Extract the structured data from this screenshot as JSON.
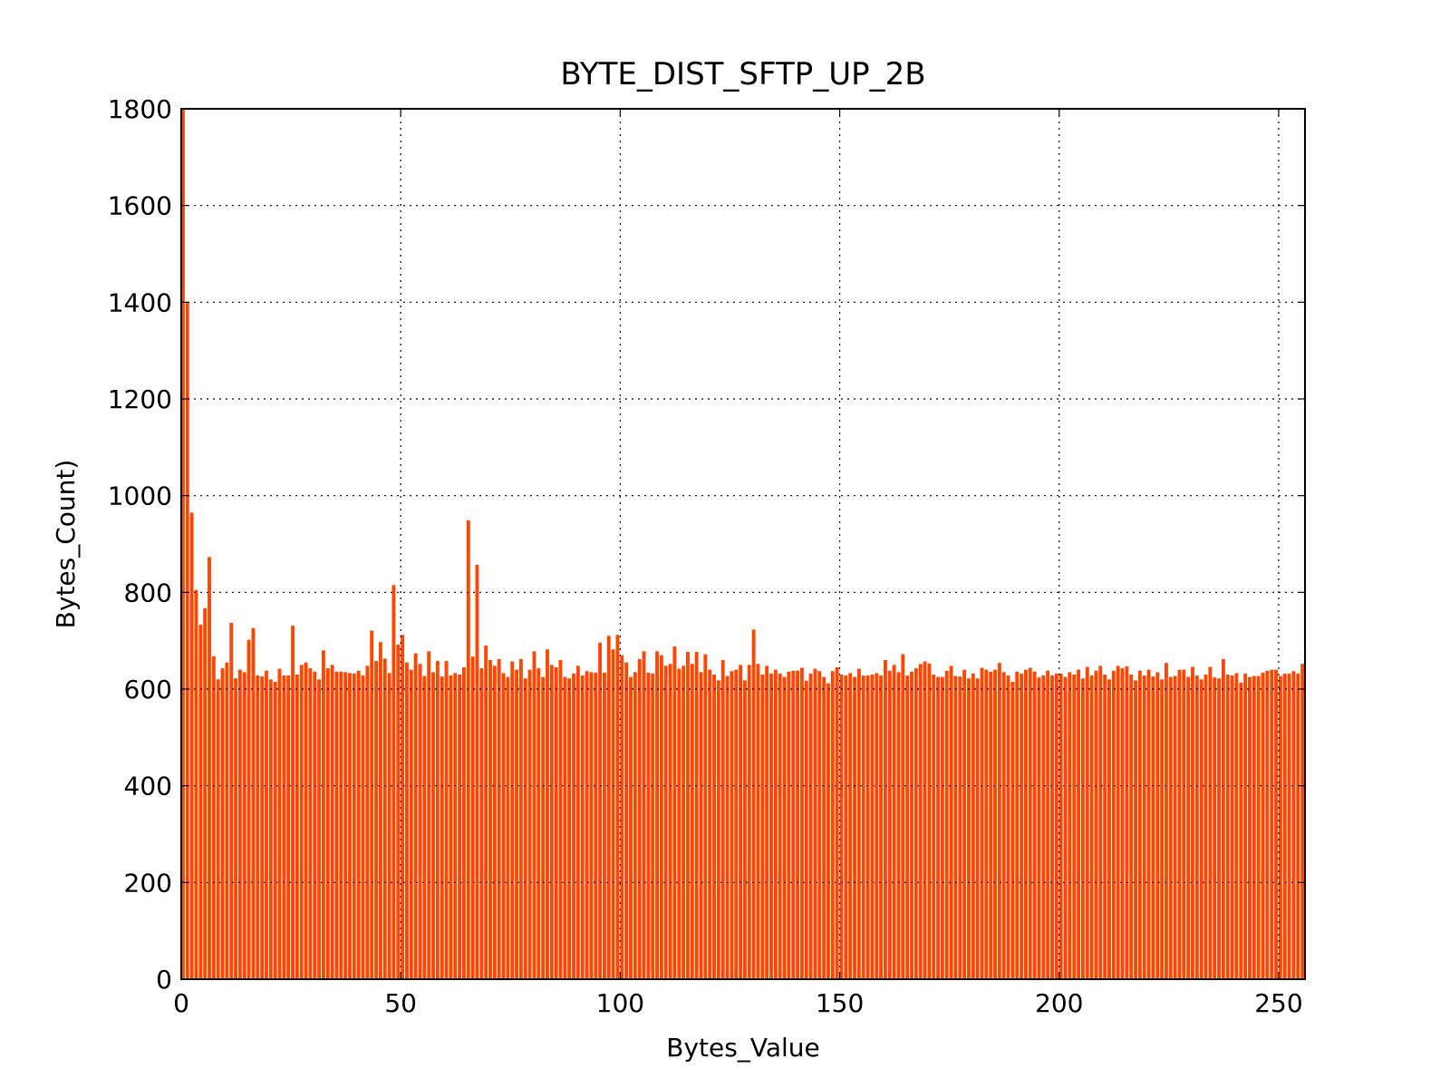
{
  "chart_data": {
    "type": "bar",
    "title": "BYTE_DIST_SFTP_UP_2B",
    "xlabel": "Bytes_Value",
    "ylabel": "Bytes_Count)",
    "color": "#ff4500",
    "grid": true,
    "xlim": [
      0,
      256
    ],
    "xticks": [
      0,
      50,
      100,
      150,
      200,
      250
    ],
    "ylim": [
      0,
      1800
    ],
    "yticks": [
      0,
      200,
      400,
      600,
      800,
      1000,
      1200,
      1400,
      1600,
      1800
    ],
    "x": [
      0,
      1,
      2,
      3,
      4,
      5,
      6,
      7,
      8,
      9,
      10,
      11,
      12,
      13,
      14,
      15,
      16,
      17,
      18,
      19,
      20,
      21,
      22,
      23,
      24,
      25,
      26,
      27,
      28,
      29,
      30,
      31,
      32,
      33,
      34,
      35,
      36,
      37,
      38,
      39,
      40,
      41,
      42,
      43,
      44,
      45,
      46,
      47,
      48,
      49,
      50,
      51,
      52,
      53,
      54,
      55,
      56,
      57,
      58,
      59,
      60,
      61,
      62,
      63,
      64,
      65,
      66,
      67,
      68,
      69,
      70,
      71,
      72,
      73,
      74,
      75,
      76,
      77,
      78,
      79,
      80,
      81,
      82,
      83,
      84,
      85,
      86,
      87,
      88,
      89,
      90,
      91,
      92,
      93,
      94,
      95,
      96,
      97,
      98,
      99,
      100,
      101,
      102,
      103,
      104,
      105,
      106,
      107,
      108,
      109,
      110,
      111,
      112,
      113,
      114,
      115,
      116,
      117,
      118,
      119,
      120,
      121,
      122,
      123,
      124,
      125,
      126,
      127,
      128,
      129,
      130,
      131,
      132,
      133,
      134,
      135,
      136,
      137,
      138,
      139,
      140,
      141,
      142,
      143,
      144,
      145,
      146,
      147,
      148,
      149,
      150,
      151,
      152,
      153,
      154,
      155,
      156,
      157,
      158,
      159,
      160,
      161,
      162,
      163,
      164,
      165,
      166,
      167,
      168,
      169,
      170,
      171,
      172,
      173,
      174,
      175,
      176,
      177,
      178,
      179,
      180,
      181,
      182,
      183,
      184,
      185,
      186,
      187,
      188,
      189,
      190,
      191,
      192,
      193,
      194,
      195,
      196,
      197,
      198,
      199,
      200,
      201,
      202,
      203,
      204,
      205,
      206,
      207,
      208,
      209,
      210,
      211,
      212,
      213,
      214,
      215,
      216,
      217,
      218,
      219,
      220,
      221,
      222,
      223,
      224,
      225,
      226,
      227,
      228,
      229,
      230,
      231,
      232,
      233,
      234,
      235,
      236,
      237,
      238,
      239,
      240,
      241,
      242,
      243,
      244,
      245,
      246,
      247,
      248,
      249,
      250,
      251,
      252,
      253,
      254,
      255
    ],
    "values": [
      1800,
      1400,
      965,
      805,
      733,
      767,
      873,
      668,
      620,
      643,
      655,
      737,
      622,
      640,
      635,
      702,
      726,
      628,
      626,
      638,
      620,
      615,
      642,
      628,
      628,
      731,
      630,
      650,
      655,
      643,
      636,
      620,
      680,
      643,
      650,
      636,
      636,
      635,
      633,
      632,
      638,
      628,
      648,
      721,
      658,
      697,
      663,
      633,
      815,
      692,
      712,
      655,
      640,
      674,
      652,
      627,
      678,
      635,
      658,
      626,
      658,
      628,
      633,
      630,
      645,
      949,
      667,
      857,
      643,
      690,
      660,
      648,
      662,
      633,
      625,
      657,
      640,
      662,
      622,
      640,
      678,
      643,
      625,
      682,
      650,
      645,
      660,
      625,
      622,
      632,
      648,
      628,
      637,
      635,
      634,
      696,
      634,
      710,
      682,
      712,
      670,
      655,
      625,
      635,
      662,
      678,
      634,
      632,
      678,
      670,
      648,
      652,
      688,
      642,
      648,
      677,
      652,
      677,
      635,
      672,
      640,
      630,
      618,
      660,
      627,
      637,
      640,
      650,
      618,
      650,
      723,
      652,
      630,
      648,
      632,
      640,
      632,
      625,
      636,
      638,
      638,
      644,
      617,
      632,
      642,
      637,
      625,
      612,
      637,
      645,
      630,
      628,
      633,
      625,
      642,
      628,
      628,
      630,
      633,
      628,
      660,
      638,
      650,
      635,
      672,
      628,
      636,
      643,
      652,
      657,
      653,
      630,
      625,
      625,
      638,
      648,
      627,
      626,
      640,
      622,
      632,
      622,
      644,
      640,
      636,
      640,
      654,
      635,
      628,
      615,
      636,
      632,
      640,
      644,
      636,
      624,
      628,
      638,
      628,
      632,
      632,
      625,
      635,
      630,
      640,
      622,
      646,
      628,
      638,
      648,
      630,
      620,
      638,
      648,
      643,
      647,
      630,
      618,
      638,
      628,
      640,
      626,
      635,
      620,
      654,
      625,
      627,
      640,
      640,
      625,
      646,
      628,
      620,
      630,
      646,
      624,
      622,
      662,
      630,
      628,
      633,
      613,
      632,
      625,
      627,
      627,
      634,
      638,
      640,
      640,
      627,
      632,
      632,
      637,
      632,
      652
    ]
  }
}
